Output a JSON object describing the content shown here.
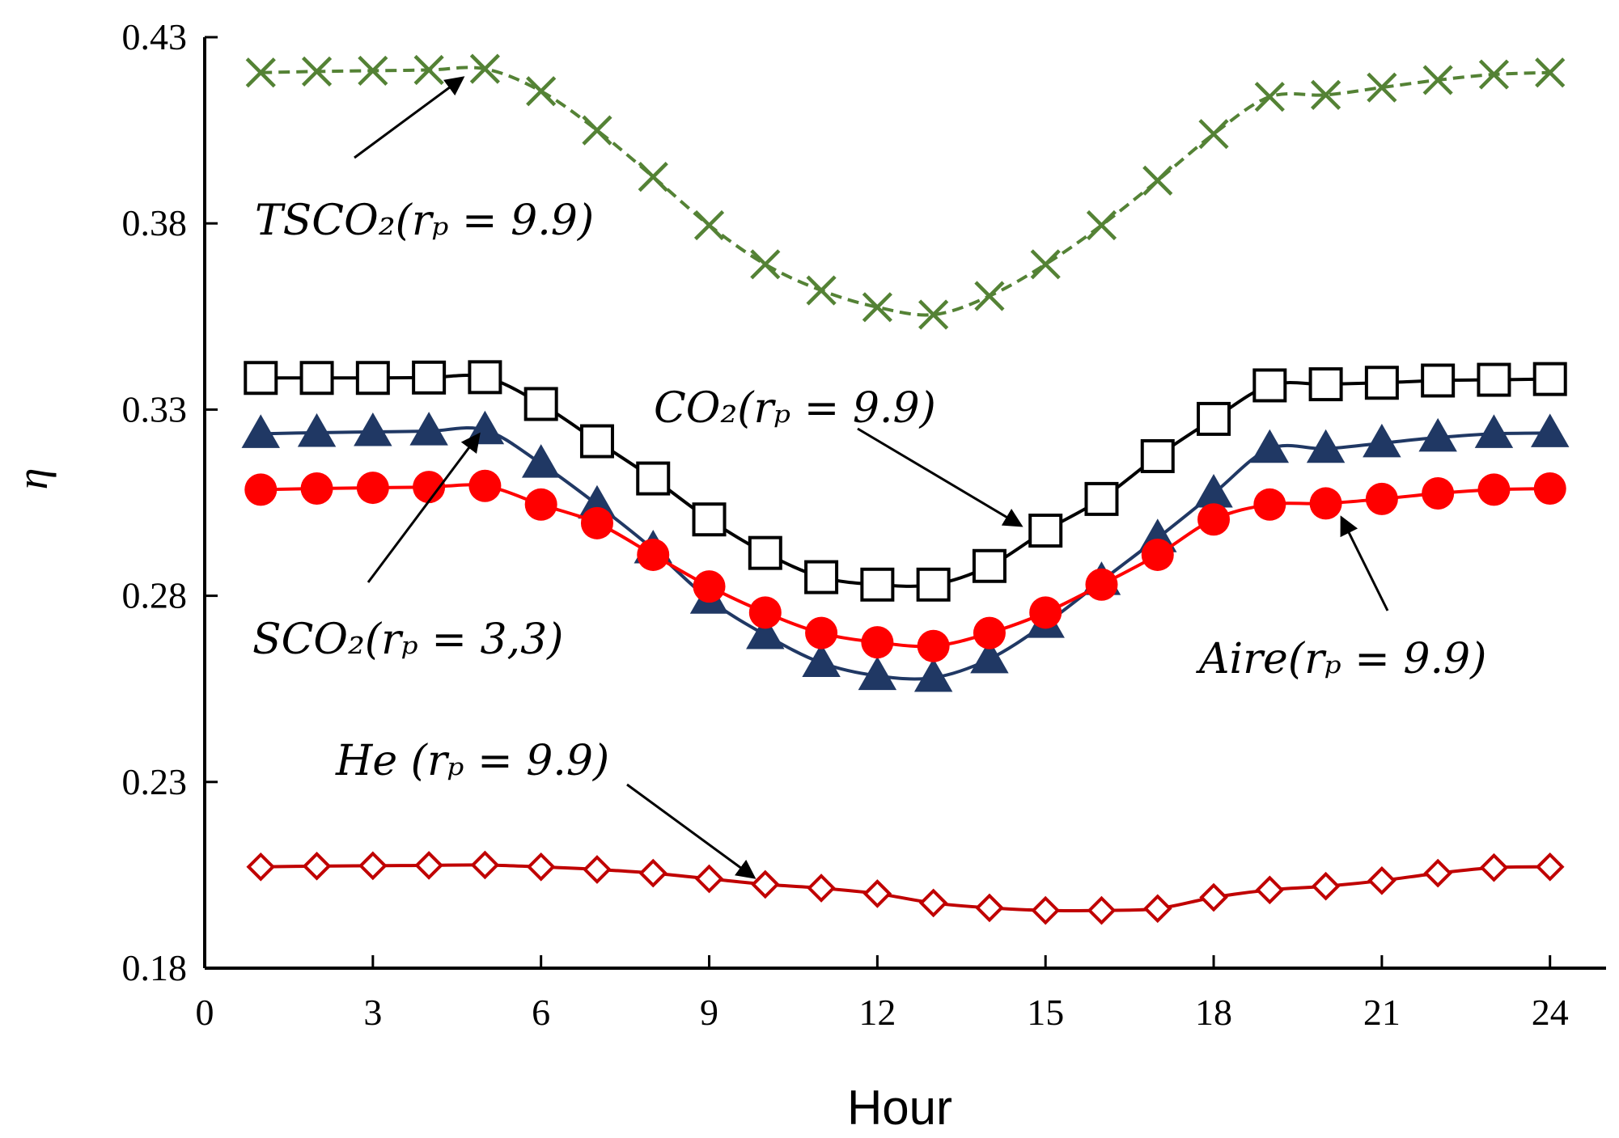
{
  "chart_data": {
    "type": "line",
    "title": "",
    "xlabel": "Hour",
    "ylabel": "η",
    "xlim": [
      0,
      25
    ],
    "ylim": [
      0.18,
      0.43
    ],
    "xticks": [
      0,
      3,
      6,
      9,
      12,
      15,
      18,
      21,
      24
    ],
    "yticks": [
      0.18,
      0.23,
      0.28,
      0.33,
      0.38,
      0.43
    ],
    "ytick_labels": [
      "0.18",
      "0.23",
      "0.28",
      "0.33",
      "0.38",
      "0.43"
    ],
    "x": [
      1,
      2,
      3,
      4,
      5,
      6,
      7,
      8,
      9,
      10,
      11,
      12,
      13,
      14,
      15,
      16,
      17,
      18,
      19,
      20,
      21,
      22,
      23,
      24
    ],
    "series": [
      {
        "name": "TSCO2 (rp = 9.9)",
        "color": "#548235",
        "marker": "x",
        "dashed": true,
        "values": [
          0.4205,
          0.4208,
          0.421,
          0.4212,
          0.4215,
          0.4155,
          0.405,
          0.3925,
          0.3795,
          0.369,
          0.362,
          0.3575,
          0.3555,
          0.3605,
          0.369,
          0.3795,
          0.3915,
          0.404,
          0.414,
          0.4145,
          0.4165,
          0.4185,
          0.42,
          0.4205
        ]
      },
      {
        "name": "CO2 (rp = 9.9)",
        "color": "#000000",
        "marker": "open-square",
        "dashed": false,
        "values": [
          0.3385,
          0.3385,
          0.3385,
          0.3386,
          0.3387,
          0.3315,
          0.3215,
          0.3115,
          0.3005,
          0.2915,
          0.285,
          0.283,
          0.283,
          0.288,
          0.2975,
          0.306,
          0.3175,
          0.3275,
          0.3365,
          0.3368,
          0.3372,
          0.3378,
          0.338,
          0.3382
        ]
      },
      {
        "name": "SCO2 (rp = 3,3)",
        "color": "#203864",
        "marker": "filled-triangle",
        "dashed": false,
        "values": [
          0.3235,
          0.3238,
          0.324,
          0.3242,
          0.3245,
          0.3155,
          0.3045,
          0.2925,
          0.279,
          0.2695,
          0.262,
          0.2585,
          0.258,
          0.263,
          0.2725,
          0.284,
          0.2955,
          0.3075,
          0.3195,
          0.3195,
          0.321,
          0.3225,
          0.3235,
          0.3237
        ]
      },
      {
        "name": "Aire (rp = 9.9)",
        "color": "#ff0000",
        "marker": "filled-circle",
        "dashed": false,
        "values": [
          0.3085,
          0.3088,
          0.309,
          0.3092,
          0.3095,
          0.3045,
          0.2995,
          0.291,
          0.2825,
          0.2755,
          0.27,
          0.2675,
          0.2665,
          0.27,
          0.2755,
          0.283,
          0.291,
          0.3005,
          0.3045,
          0.3048,
          0.306,
          0.3075,
          0.3085,
          0.3088
        ]
      },
      {
        "name": "He (rp = 9.9)",
        "color": "#c00000",
        "marker": "open-diamond",
        "dashed": false,
        "values": [
          0.2072,
          0.2074,
          0.2075,
          0.2076,
          0.2077,
          0.2072,
          0.2065,
          0.2055,
          0.204,
          0.2025,
          0.2015,
          0.2,
          0.1975,
          0.1962,
          0.1955,
          0.1955,
          0.196,
          0.199,
          0.201,
          0.202,
          0.2035,
          0.2055,
          0.207,
          0.2072
        ]
      }
    ],
    "annotations": [
      {
        "text": "TSCO₂(rₚ = 9.9)"
      },
      {
        "text": "CO₂(rₚ = 9.9)"
      },
      {
        "text": "SCO₂(rₚ = 3,3)"
      },
      {
        "text": "Aire(rₚ = 9.9)"
      },
      {
        "text": "He (rₚ = 9.9)"
      }
    ]
  }
}
